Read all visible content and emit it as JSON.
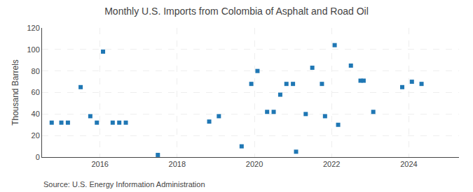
{
  "chart_data": {
    "type": "scatter",
    "title": "Monthly U.S. Imports from Colombia of Asphalt and Road Oil",
    "ylabel": "Thousand Barrels",
    "source": "Source: U.S. Energy Information Administration",
    "marker": "square",
    "grid": true,
    "xlim": [
      2014.5,
      2025.3
    ],
    "ylim": [
      0,
      120
    ],
    "xticks": [
      2016,
      2018,
      2020,
      2022,
      2024
    ],
    "yticks": [
      0,
      20,
      40,
      60,
      80,
      100,
      120
    ],
    "x": [
      2014.75,
      2015.0,
      2015.17,
      2015.5,
      2015.75,
      2015.92,
      2016.08,
      2016.33,
      2016.5,
      2016.67,
      2017.5,
      2018.83,
      2019.08,
      2019.67,
      2019.92,
      2020.08,
      2020.33,
      2020.5,
      2020.67,
      2020.83,
      2021.0,
      2021.08,
      2021.33,
      2021.5,
      2021.75,
      2021.83,
      2022.08,
      2022.17,
      2022.5,
      2022.75,
      2022.83,
      2023.08,
      2023.83,
      2024.08,
      2024.33
    ],
    "values": [
      32,
      32,
      32,
      65,
      38,
      32,
      98,
      32,
      32,
      32,
      2,
      33,
      38,
      10,
      68,
      80,
      42,
      42,
      58,
      68,
      68,
      5,
      40,
      83,
      68,
      38,
      104,
      30,
      85,
      71,
      71,
      42,
      65,
      70,
      68
    ]
  }
}
